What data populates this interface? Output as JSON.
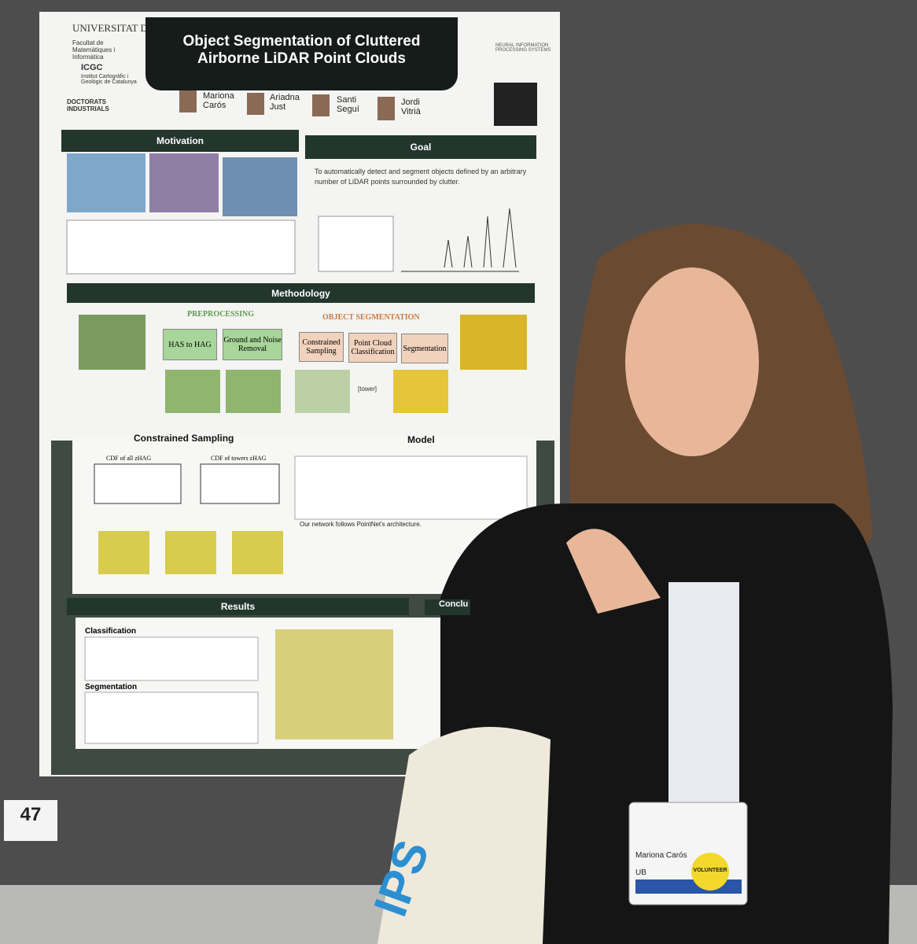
{
  "poster": {
    "title": [
      "Object Segmentation of Cluttered",
      "Airborne LiDAR Point Clouds"
    ],
    "affiliations": [
      "UNIVERSITAT DE BARCELONA",
      "Facultat de Matemàtiques i Informàtica",
      "ICGC",
      "Institut Cartogràfic i Geològic de Catalunya",
      "DOCTORATS INDUSTRIALS",
      "NEURAL INFORMATION PROCESSING SYSTEMS"
    ],
    "authors": [
      "Mariona Carós",
      "Ariadna Just",
      "Santi Seguí",
      "Jordi Vitrià"
    ],
    "sections": {
      "motivation": "Motivation",
      "goal": "Goal",
      "methodology": "Methodology",
      "sampling": "Constrained Sampling",
      "model": "Model",
      "results": "Results",
      "conclusions": "Conclu"
    },
    "goal_text": "To automatically detect and segment objects defined by an arbitrary number of LiDAR points surrounded by clutter.",
    "method": {
      "preprocessing": "PREPROCESSING",
      "object_segmentation": "OBJECT SEGMENTATION",
      "steps": [
        "HAS to HAG",
        "Ground and Noise Removal",
        "Constrained Sampling",
        "Point Cloud Classification",
        "Segmentation"
      ],
      "class_label": "[tower]"
    },
    "charts": [
      "CDF of all zHAG",
      "CDF of towers zHAG"
    ],
    "model_text": "Our network follows PointNet's architecture.",
    "results": [
      "Classification",
      "Segmentation"
    ]
  },
  "board_number": "47",
  "badge": {
    "name": "Mariona Carós",
    "affiliation": "UB",
    "role": "VOLUNTEER"
  }
}
